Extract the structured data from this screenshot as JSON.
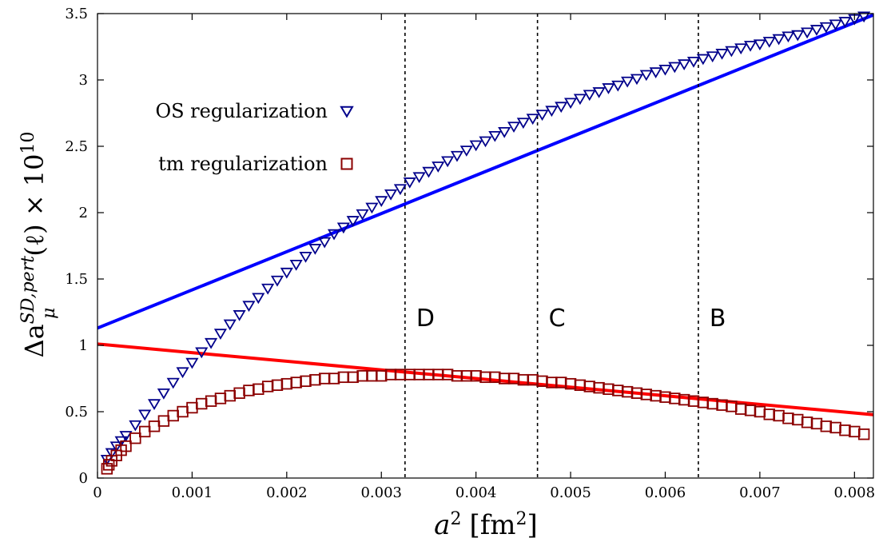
{
  "chart_data": {
    "type": "scatter",
    "xlabel": {
      "base": "a",
      "sup": "2",
      "unit_base": "fm",
      "unit_sup": "2"
    },
    "ylabel": {
      "prefix": "Δa",
      "sub": "μ",
      "sup": "SD,pert.",
      "suffix": "(ℓ) × 10",
      "exp": "10"
    },
    "xlim": [
      0,
      0.0082
    ],
    "ylim": [
      0,
      3.5
    ],
    "x_ticks": [
      0,
      0.001,
      0.002,
      0.003,
      0.004,
      0.005,
      0.006,
      0.007,
      0.008
    ],
    "x_tick_labels": [
      "0",
      "0.001",
      "0.002",
      "0.003",
      "0.004",
      "0.005",
      "0.006",
      "0.007",
      "0.008"
    ],
    "y_ticks": [
      0,
      0.5,
      1,
      1.5,
      2,
      2.5,
      3,
      3.5
    ],
    "y_tick_labels": [
      "0",
      "0.5",
      "1",
      "1.5",
      "2",
      "2.5",
      "3",
      "3.5"
    ],
    "grid": false,
    "legend_position": "top-left",
    "vlines": [
      {
        "x": 0.00325,
        "label": "D"
      },
      {
        "x": 0.00465,
        "label": "C"
      },
      {
        "x": 0.00635,
        "label": "B"
      }
    ],
    "series": [
      {
        "name": "OS regularization",
        "marker": "triangle-down",
        "color": "#00008b",
        "points": [
          [
            0.0001,
            0.14
          ],
          [
            0.00015,
            0.19
          ],
          [
            0.0002,
            0.24
          ],
          [
            0.00025,
            0.28
          ],
          [
            0.0003,
            0.32
          ],
          [
            0.0004,
            0.4
          ],
          [
            0.0005,
            0.48
          ],
          [
            0.0006,
            0.56
          ],
          [
            0.0007,
            0.64
          ],
          [
            0.0008,
            0.72
          ],
          [
            0.0009,
            0.8
          ],
          [
            0.001,
            0.87
          ],
          [
            0.0011,
            0.95
          ],
          [
            0.0012,
            1.02
          ],
          [
            0.0013,
            1.09
          ],
          [
            0.0014,
            1.16
          ],
          [
            0.0015,
            1.23
          ],
          [
            0.0016,
            1.3
          ],
          [
            0.0017,
            1.36
          ],
          [
            0.0018,
            1.43
          ],
          [
            0.0019,
            1.49
          ],
          [
            0.002,
            1.55
          ],
          [
            0.0021,
            1.61
          ],
          [
            0.0022,
            1.67
          ],
          [
            0.0023,
            1.73
          ],
          [
            0.0024,
            1.78
          ],
          [
            0.0025,
            1.84
          ],
          [
            0.0026,
            1.89
          ],
          [
            0.0027,
            1.94
          ],
          [
            0.0028,
            1.99
          ],
          [
            0.0029,
            2.04
          ],
          [
            0.003,
            2.09
          ],
          [
            0.0031,
            2.14
          ],
          [
            0.0032,
            2.18
          ],
          [
            0.0033,
            2.23
          ],
          [
            0.0034,
            2.27
          ],
          [
            0.0035,
            2.31
          ],
          [
            0.0036,
            2.35
          ],
          [
            0.0037,
            2.39
          ],
          [
            0.0038,
            2.43
          ],
          [
            0.0039,
            2.47
          ],
          [
            0.004,
            2.51
          ],
          [
            0.0041,
            2.54
          ],
          [
            0.0042,
            2.58
          ],
          [
            0.0043,
            2.61
          ],
          [
            0.0044,
            2.65
          ],
          [
            0.0045,
            2.68
          ],
          [
            0.0046,
            2.71
          ],
          [
            0.0047,
            2.74
          ],
          [
            0.0048,
            2.77
          ],
          [
            0.0049,
            2.8
          ],
          [
            0.005,
            2.83
          ],
          [
            0.0051,
            2.86
          ],
          [
            0.0052,
            2.89
          ],
          [
            0.0053,
            2.91
          ],
          [
            0.0054,
            2.94
          ],
          [
            0.0055,
            2.96
          ],
          [
            0.0056,
            2.99
          ],
          [
            0.0057,
            3.01
          ],
          [
            0.0058,
            3.04
          ],
          [
            0.0059,
            3.06
          ],
          [
            0.006,
            3.08
          ],
          [
            0.0061,
            3.1
          ],
          [
            0.0062,
            3.12
          ],
          [
            0.0063,
            3.14
          ],
          [
            0.0064,
            3.16
          ],
          [
            0.0065,
            3.18
          ],
          [
            0.0066,
            3.2
          ],
          [
            0.0067,
            3.22
          ],
          [
            0.0068,
            3.24
          ],
          [
            0.0069,
            3.26
          ],
          [
            0.007,
            3.27
          ],
          [
            0.0071,
            3.29
          ],
          [
            0.0072,
            3.31
          ],
          [
            0.0073,
            3.33
          ],
          [
            0.0074,
            3.34
          ],
          [
            0.0075,
            3.36
          ],
          [
            0.0076,
            3.38
          ],
          [
            0.0077,
            3.4
          ],
          [
            0.0078,
            3.42
          ],
          [
            0.0079,
            3.44
          ],
          [
            0.008,
            3.46
          ],
          [
            0.0081,
            3.48
          ]
        ],
        "fit": {
          "color": "#0000ff",
          "intercept": 1.13,
          "slope": 287.8
        }
      },
      {
        "name": "tm regularization",
        "marker": "square",
        "color": "#8b0000",
        "points": [
          [
            0.0001,
            0.07
          ],
          [
            0.00012,
            0.1
          ],
          [
            0.00015,
            0.13
          ],
          [
            0.0002,
            0.17
          ],
          [
            0.00025,
            0.21
          ],
          [
            0.0003,
            0.24
          ],
          [
            0.0004,
            0.3
          ],
          [
            0.0005,
            0.35
          ],
          [
            0.0006,
            0.39
          ],
          [
            0.0007,
            0.43
          ],
          [
            0.0008,
            0.47
          ],
          [
            0.0009,
            0.5
          ],
          [
            0.001,
            0.53
          ],
          [
            0.0011,
            0.56
          ],
          [
            0.0012,
            0.58
          ],
          [
            0.0013,
            0.6
          ],
          [
            0.0014,
            0.62
          ],
          [
            0.0015,
            0.64
          ],
          [
            0.0016,
            0.66
          ],
          [
            0.0017,
            0.67
          ],
          [
            0.0018,
            0.69
          ],
          [
            0.0019,
            0.7
          ],
          [
            0.002,
            0.71
          ],
          [
            0.0021,
            0.72
          ],
          [
            0.0022,
            0.73
          ],
          [
            0.0023,
            0.74
          ],
          [
            0.0024,
            0.75
          ],
          [
            0.0025,
            0.75
          ],
          [
            0.0026,
            0.76
          ],
          [
            0.0027,
            0.76
          ],
          [
            0.0028,
            0.77
          ],
          [
            0.0029,
            0.77
          ],
          [
            0.003,
            0.77
          ],
          [
            0.0031,
            0.78
          ],
          [
            0.0032,
            0.78
          ],
          [
            0.0033,
            0.78
          ],
          [
            0.0034,
            0.78
          ],
          [
            0.0035,
            0.78
          ],
          [
            0.0036,
            0.78
          ],
          [
            0.0037,
            0.78
          ],
          [
            0.0038,
            0.77
          ],
          [
            0.0039,
            0.77
          ],
          [
            0.004,
            0.77
          ],
          [
            0.0041,
            0.76
          ],
          [
            0.0042,
            0.76
          ],
          [
            0.0043,
            0.75
          ],
          [
            0.0044,
            0.75
          ],
          [
            0.0045,
            0.74
          ],
          [
            0.0046,
            0.74
          ],
          [
            0.0047,
            0.73
          ],
          [
            0.0048,
            0.72
          ],
          [
            0.0049,
            0.72
          ],
          [
            0.005,
            0.71
          ],
          [
            0.0051,
            0.7
          ],
          [
            0.0052,
            0.69
          ],
          [
            0.0053,
            0.68
          ],
          [
            0.0054,
            0.67
          ],
          [
            0.0055,
            0.66
          ],
          [
            0.0056,
            0.65
          ],
          [
            0.0057,
            0.64
          ],
          [
            0.0058,
            0.63
          ],
          [
            0.0059,
            0.62
          ],
          [
            0.006,
            0.61
          ],
          [
            0.0061,
            0.6
          ],
          [
            0.0062,
            0.59
          ],
          [
            0.0063,
            0.58
          ],
          [
            0.0064,
            0.57
          ],
          [
            0.0065,
            0.56
          ],
          [
            0.0066,
            0.55
          ],
          [
            0.0067,
            0.54
          ],
          [
            0.0068,
            0.52
          ],
          [
            0.0069,
            0.51
          ],
          [
            0.007,
            0.5
          ],
          [
            0.0071,
            0.48
          ],
          [
            0.0072,
            0.47
          ],
          [
            0.0073,
            0.45
          ],
          [
            0.0074,
            0.44
          ],
          [
            0.0075,
            0.42
          ],
          [
            0.0076,
            0.41
          ],
          [
            0.0077,
            0.39
          ],
          [
            0.0078,
            0.38
          ],
          [
            0.0079,
            0.36
          ],
          [
            0.008,
            0.35
          ],
          [
            0.0081,
            0.33
          ]
        ],
        "fit": {
          "color": "#ff0000",
          "intercept": 1.01,
          "slope": -65
        }
      }
    ]
  }
}
